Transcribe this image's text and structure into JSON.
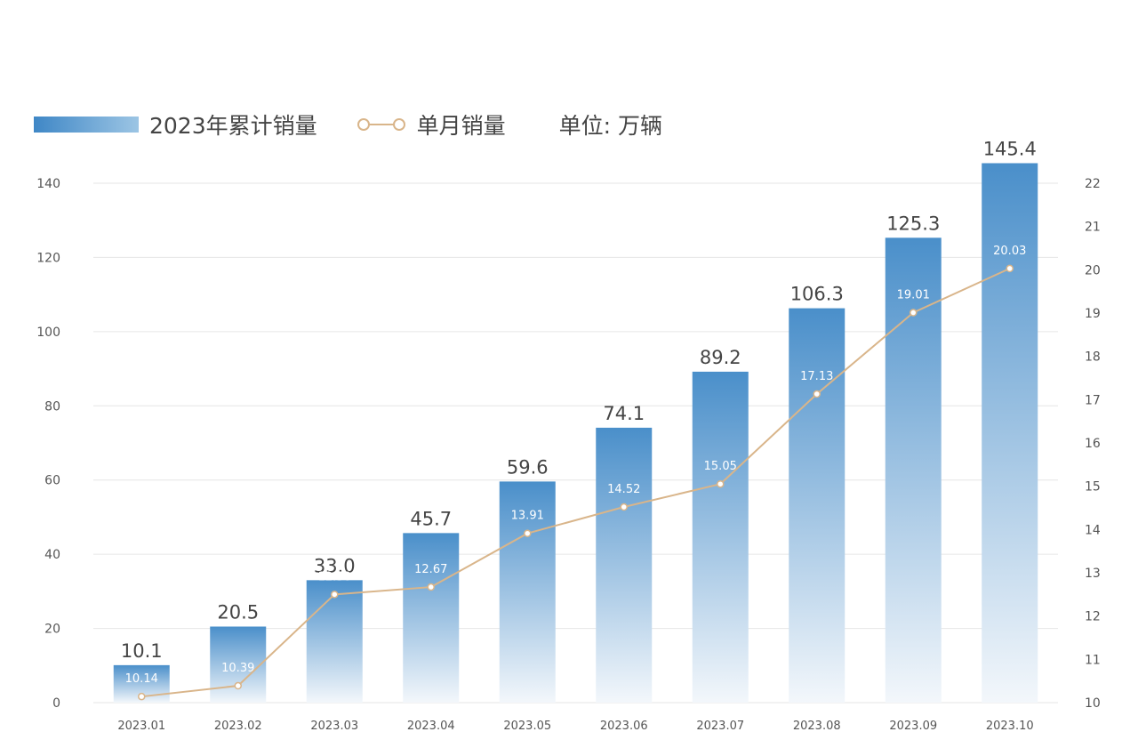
{
  "legend": {
    "bar_label": "2023年累计销量",
    "line_label": "单月销量",
    "unit_label": "单位: 万辆"
  },
  "colors": {
    "bar_top": "#4a8fca",
    "bar_bottom": "#f3f7fb",
    "line": "#d9b58a",
    "marker_fill": "#ffffff",
    "grid": "#e6e6e6",
    "axis_text": "#555555",
    "bar_label": "#444444",
    "inner_label": "#ffffff"
  },
  "chart_data": {
    "type": "bar",
    "categories": [
      "2023.01",
      "2023.02",
      "2023.03",
      "2023.04",
      "2023.05",
      "2023.06",
      "2023.07",
      "2023.08",
      "2023.09",
      "2023.10"
    ],
    "series": [
      {
        "name": "2023年累计销量",
        "type": "bar",
        "axis": "left",
        "values": [
          10.1,
          20.5,
          33.0,
          45.7,
          59.6,
          74.1,
          89.2,
          106.3,
          125.3,
          145.4
        ],
        "labels": [
          "10.1",
          "20.5",
          "33.0",
          "45.7",
          "59.6",
          "74.1",
          "89.2",
          "106.3",
          "125.3",
          "145.4"
        ]
      },
      {
        "name": "单月销量",
        "type": "line",
        "axis": "right",
        "values": [
          10.14,
          10.39,
          12.5,
          12.67,
          13.91,
          14.52,
          15.05,
          17.13,
          19.01,
          20.03
        ],
        "labels": [
          "10.14",
          "10.39",
          "12.50",
          "12.67",
          "13.91",
          "14.52",
          "15.05",
          "17.13",
          "19.01",
          "20.03"
        ]
      }
    ],
    "y_left": {
      "ylim": [
        0,
        140
      ],
      "ticks": [
        0,
        20,
        40,
        60,
        80,
        100,
        120,
        140
      ]
    },
    "y_right": {
      "ylim": [
        10,
        22
      ],
      "ticks": [
        10,
        11,
        12,
        13,
        14,
        15,
        16,
        17,
        18,
        19,
        20,
        21,
        22
      ]
    },
    "grid": true,
    "legend_position": "top-left"
  }
}
